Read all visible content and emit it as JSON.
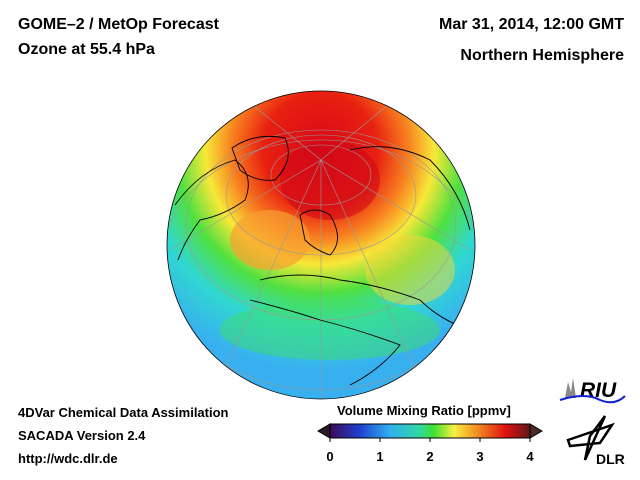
{
  "header": {
    "title": "GOME–2 / MetOp Forecast",
    "subtitle": "Ozone at 55.4 hPa",
    "datetime": "Mar 31, 2014, 12:00 GMT",
    "region": "Northern Hemisphere"
  },
  "footer": {
    "line1": "4DVar Chemical Data Assimilation",
    "line2": "SACADA Version 2.4",
    "url": "http://wdc.dlr.de"
  },
  "colorbar": {
    "title": "Volume Mixing Ratio [ppmv]",
    "ticks": [
      "0",
      "1",
      "2",
      "3",
      "4"
    ],
    "range": [
      0,
      4
    ],
    "colors": [
      "#3a0a5a",
      "#2050e0",
      "#30c8f0",
      "#30e040",
      "#f8f040",
      "#f08020",
      "#e01010",
      "#701818"
    ]
  },
  "logos": {
    "riu": "RIU",
    "dlr": "DLR"
  }
}
